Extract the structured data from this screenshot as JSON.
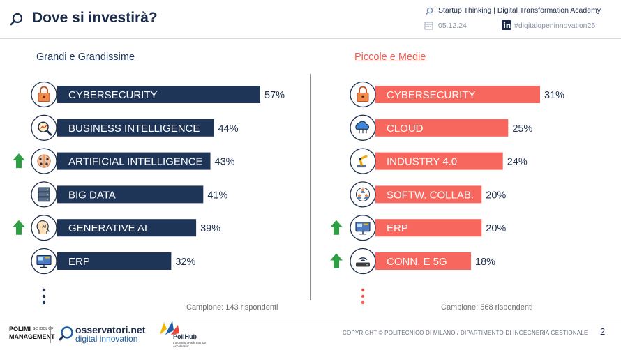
{
  "header": {
    "title": "Dove si investirà?",
    "right_line": "Startup Thinking | Digital Transformation Academy",
    "date": "05.12.24",
    "hashtag": "#digitalopeninnovation25"
  },
  "left_title": "Grandi e Grandissime",
  "right_title": "Piccole e Medie",
  "sample_left": "Campione: 143 rispondenti",
  "sample_right": "Campione: 568 rispondenti",
  "footer": {
    "copyright": "COPYRIGHT © POLITECNICO DI MILANO / DIPARTIMENTO DI INGEGNERIA GESTIONALE",
    "page": "2",
    "polimi": "POLIMI\nMANAGEMENT",
    "polimi_sub": "SCHOOL OF",
    "oss_1": "osservatori.net",
    "oss_2": "digital innovation",
    "polihub": "PoliHub",
    "polihub_sub": "Innovation Park Startup Accelerator"
  },
  "colors": {
    "left_bar": "#1e3558",
    "right_bar": "#f7675d",
    "arrow": "#2ea043",
    "ellipsis_left": "#1e3558",
    "ellipsis_right": "#f05a4f"
  },
  "chart_data": [
    {
      "type": "bar",
      "orientation": "horizontal",
      "title": "Grandi e Grandissime",
      "categories": [
        "CYBERSECURITY",
        "BUSINESS INTELLIGENCE",
        "ARTIFICIAL INTELLIGENCE",
        "BIG DATA",
        "GENERATIVE AI",
        "ERP"
      ],
      "values": [
        57,
        44,
        43,
        41,
        39,
        32
      ],
      "value_labels": [
        "57%",
        "44%",
        "43%",
        "41%",
        "39%",
        "32%"
      ],
      "icons": [
        "lock-icon",
        "magnifier-chart-icon",
        "brain-circuit-icon",
        "server-rack-icon",
        "ai-head-icon",
        "erp-monitor-icon"
      ],
      "trend_up": [
        false,
        false,
        true,
        false,
        true,
        false
      ],
      "xlim": [
        0,
        57
      ]
    },
    {
      "type": "bar",
      "orientation": "horizontal",
      "title": "Piccole e Medie",
      "categories": [
        "CYBERSECURITY",
        "CLOUD",
        "INDUSTRY 4.0",
        "SOFTW. COLLAB.",
        "ERP",
        "CONN. E 5G"
      ],
      "values": [
        31,
        25,
        24,
        20,
        20,
        18
      ],
      "value_labels": [
        "31%",
        "25%",
        "24%",
        "20%",
        "20%",
        "18%"
      ],
      "icons": [
        "lock-icon",
        "cloud-icon",
        "robot-arm-icon",
        "team-collab-icon",
        "erp-monitor-icon",
        "wifi-router-icon"
      ],
      "trend_up": [
        false,
        false,
        false,
        false,
        true,
        true
      ],
      "xlim": [
        0,
        31
      ]
    }
  ]
}
